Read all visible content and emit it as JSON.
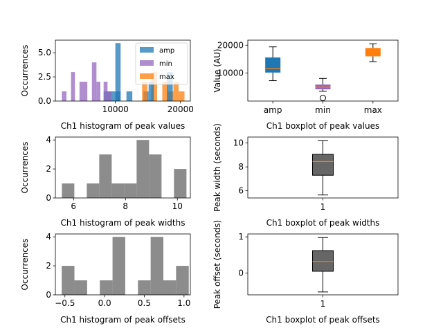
{
  "chart_data": [
    {
      "id": "hist_peak",
      "type": "histogram",
      "xlabel": "Ch1 histogram of peak values",
      "ylabel": "Occurrences",
      "xlim": [
        800,
        21500
      ],
      "ylim": [
        0,
        6.3
      ],
      "xticks": [
        10000,
        20000
      ],
      "xtick_labels": [
        "10000",
        "20000"
      ],
      "yticks": [
        0,
        2.5,
        5
      ],
      "ytick_labels": [
        "0.0",
        "2.5",
        "5.0"
      ],
      "legend": {
        "placement": "top-right",
        "entries": [
          "amp",
          "min",
          "max"
        ]
      },
      "series": [
        {
          "name": "amp",
          "color": "#1f77b4",
          "bins": [
            [
              8200,
              10000,
              1
            ],
            [
              10000,
              10800,
              1
            ],
            [
              11700,
              12600,
              1
            ],
            [
              14300,
              15100,
              1
            ]
          ]
        },
        {
          "name": "min",
          "color": "#9467bd",
          "bins": [
            [
              1800,
              2500,
              1
            ],
            [
              3200,
              3800,
              3
            ],
            [
              4500,
              5100,
              2
            ],
            [
              5100,
              5700,
              2
            ],
            [
              6400,
              7100,
              4
            ],
            [
              7100,
              7700,
              2
            ],
            [
              8200,
              8800,
              2
            ],
            [
              8800,
              9400,
              1
            ]
          ]
        },
        {
          "name": "max",
          "color": "#ff7f0e",
          "bins": [
            [
              14100,
              14900,
              2
            ],
            [
              15500,
              16400,
              3
            ],
            [
              17200,
              18000,
              2
            ],
            [
              18000,
              18900,
              1
            ],
            [
              18900,
              19700,
              2
            ],
            [
              19700,
              20600,
              1
            ]
          ]
        }
      ],
      "extra_bars": [
        {
          "series": "amp",
          "x": [
            10000,
            10800
          ],
          "value": 6
        },
        {
          "series": "amp",
          "x": [
            15100,
            15900
          ],
          "value": 2
        },
        {
          "series": "amp",
          "x": [
            17900,
            18800
          ],
          "value": 3
        }
      ]
    },
    {
      "id": "box_peak",
      "type": "boxplot",
      "xlabel": "Ch1 boxplot of peak values",
      "ylabel": "Value (AU)",
      "ylim": [
        0,
        21800
      ],
      "yticks": [
        10000,
        20000
      ],
      "ytick_labels": [
        "10000",
        "20000"
      ],
      "categories": [
        "amp",
        "min",
        "max"
      ],
      "boxes": [
        {
          "label": "amp",
          "color": "#1f77b4",
          "whislo": 7300,
          "q1": 10200,
          "med": 11700,
          "q3": 15600,
          "whishi": 19400,
          "fliers": []
        },
        {
          "label": "min",
          "color": "#9467bd",
          "whislo": 3500,
          "q1": 4200,
          "med": 5000,
          "q3": 5900,
          "whishi": 8100,
          "fliers": [
            1100
          ]
        },
        {
          "label": "max",
          "color": "#ff7f0e",
          "whislo": 14100,
          "q1": 16000,
          "med": 17500,
          "q3": 19000,
          "whishi": 20500,
          "fliers": []
        }
      ]
    },
    {
      "id": "hist_width",
      "type": "histogram",
      "xlabel": "Ch1 histogram of peak widths",
      "ylabel": "Occurrences",
      "xlim": [
        5.3,
        10.5
      ],
      "ylim": [
        0,
        4.2
      ],
      "xticks": [
        6,
        8,
        10
      ],
      "xtick_labels": [
        "6",
        "8",
        "10"
      ],
      "yticks": [
        0,
        2,
        4
      ],
      "ytick_labels": [
        "0",
        "2",
        "4"
      ],
      "series": [
        {
          "name": "",
          "color": "#8c8c8c",
          "bins": [
            [
              5.55,
              6.03,
              1
            ],
            [
              6.51,
              6.99,
              1
            ],
            [
              6.99,
              7.47,
              3
            ],
            [
              7.47,
              7.95,
              1
            ],
            [
              7.95,
              8.43,
              1
            ],
            [
              8.43,
              8.91,
              4
            ],
            [
              8.91,
              9.39,
              3
            ],
            [
              9.87,
              10.35,
              2
            ]
          ]
        }
      ]
    },
    {
      "id": "box_width",
      "type": "boxplot",
      "xlabel": "Ch1 boxplot of peak widths",
      "ylabel": "Peak width (seconds)",
      "ylim": [
        5.4,
        10.5
      ],
      "yticks": [
        6,
        8,
        10
      ],
      "ytick_labels": [
        "6",
        "8",
        "10"
      ],
      "categories": [
        "1"
      ],
      "boxes": [
        {
          "label": "1",
          "color": "#666666",
          "whislo": 5.65,
          "q1": 7.3,
          "med": 8.45,
          "q3": 9.05,
          "whishi": 10.2,
          "fliers": []
        }
      ]
    },
    {
      "id": "hist_offset",
      "type": "histogram",
      "xlabel": "Ch1 histogram of peak offsets",
      "ylabel": "Occurrences",
      "xlim": [
        -0.62,
        1.08
      ],
      "ylim": [
        0,
        4.2
      ],
      "xticks": [
        -0.5,
        0,
        0.5,
        1
      ],
      "xtick_labels": [
        "−0.5",
        "0.0",
        "0.5",
        "1.0"
      ],
      "yticks": [
        0,
        2,
        4
      ],
      "ytick_labels": [
        "0",
        "2",
        "4"
      ],
      "series": [
        {
          "name": "",
          "color": "#8c8c8c",
          "bins": [
            [
              -0.54,
              -0.38,
              2
            ],
            [
              -0.38,
              -0.22,
              1
            ],
            [
              -0.06,
              0.1,
              1
            ],
            [
              0.1,
              0.26,
              4
            ],
            [
              0.42,
              0.58,
              1
            ],
            [
              0.58,
              0.74,
              4
            ],
            [
              0.74,
              0.9,
              1
            ],
            [
              0.9,
              1.06,
              2
            ]
          ]
        }
      ]
    },
    {
      "id": "box_offset",
      "type": "boxplot",
      "xlabel": "Ch1 boxplot of peak offsets",
      "ylabel": "Peak offset (seconds)",
      "ylim": [
        -0.6,
        1.08
      ],
      "yticks": [
        0,
        1
      ],
      "ytick_labels": [
        "0",
        "1"
      ],
      "categories": [
        "1"
      ],
      "boxes": [
        {
          "label": "1",
          "color": "#666666",
          "whislo": -0.52,
          "q1": 0.05,
          "med": 0.32,
          "q3": 0.62,
          "whishi": 0.98,
          "fliers": []
        }
      ]
    }
  ]
}
